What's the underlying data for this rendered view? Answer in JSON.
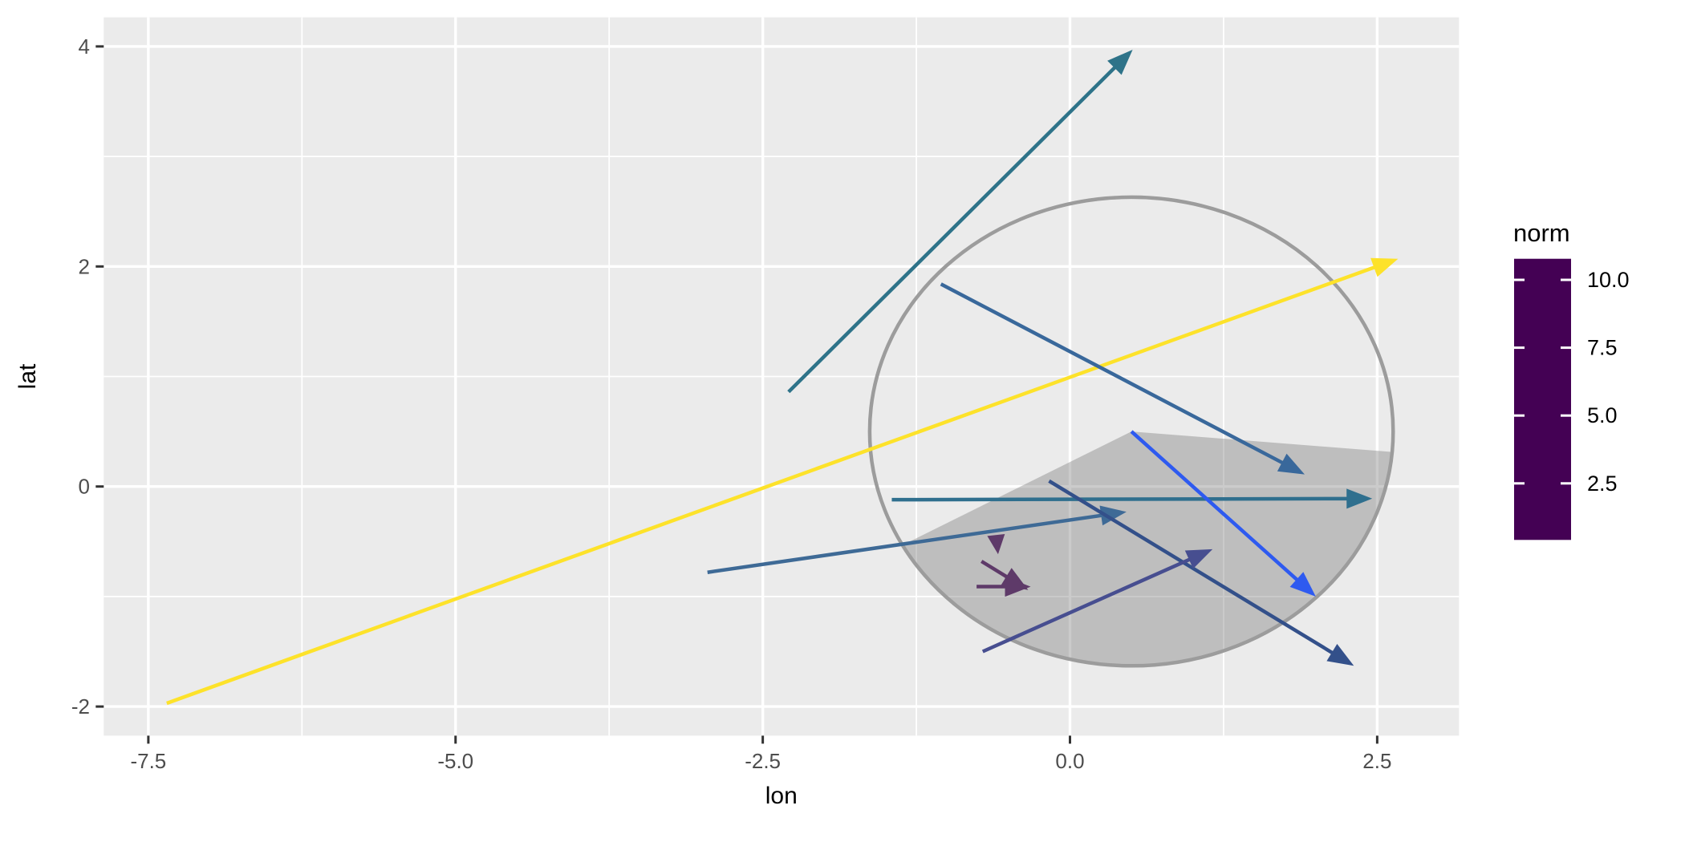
{
  "chart_data": {
    "type": "scatter",
    "subtype": "arrow_segments_vector_plot",
    "title": "",
    "xlabel": "lon",
    "ylabel": "lat",
    "xlim": [
      -7.86,
      3.17
    ],
    "ylim": [
      -2.27,
      4.27
    ],
    "grid": true,
    "x_ticks": {
      "values": [
        -7.5,
        -5.0,
        -2.5,
        0.0,
        2.5
      ],
      "labels": [
        "-7.5",
        "-5.0",
        "-2.5",
        "0.0",
        "2.5"
      ]
    },
    "x_minor": [
      -6.25,
      -3.75,
      -1.25,
      1.25
    ],
    "y_ticks": {
      "values": [
        -2,
        0,
        2,
        4
      ],
      "labels": [
        "-2",
        "0",
        "2",
        "4"
      ]
    },
    "y_minor": [
      -1,
      1,
      3
    ],
    "segments": [
      {
        "name": "yellow-long-arrow",
        "x": -7.35,
        "y": -1.97,
        "xend": 2.67,
        "yend": 2.07,
        "norm": 10.8,
        "color": "#FDE22A"
      },
      {
        "name": "teal-up-arrow",
        "x": -2.29,
        "y": 0.86,
        "xend": 0.51,
        "yend": 3.97,
        "norm": 4.2,
        "color": "#2E7389"
      },
      {
        "name": "horizontal-arrow",
        "x": -1.45,
        "y": -0.12,
        "xend": 2.46,
        "yend": -0.11,
        "norm": 3.9,
        "color": "#2F6F8E"
      },
      {
        "name": "low-left-arrow",
        "x": -2.95,
        "y": -0.78,
        "xend": 0.46,
        "yend": -0.23,
        "norm": 3.4,
        "color": "#3E6A96"
      },
      {
        "name": "steel-down-arrow",
        "x": -1.05,
        "y": 1.84,
        "xend": 1.91,
        "yend": 0.11,
        "norm": 3.4,
        "color": "#39689B"
      },
      {
        "name": "navy-down-arrow",
        "x": -0.17,
        "y": 0.05,
        "xend": 2.31,
        "yend": -1.63,
        "norm": 3.0,
        "color": "#33508A"
      },
      {
        "name": "slate-up-arrow",
        "x": -0.71,
        "y": -1.5,
        "xend": 1.16,
        "yend": -0.57,
        "norm": 2.1,
        "color": "#474E90"
      },
      {
        "name": "bright-blue-arrow",
        "x": 0.5,
        "y": 0.5,
        "xend": 2.0,
        "yend": -1.0,
        "norm": null,
        "color": "#2E5AF0"
      },
      {
        "name": "purple-tiny-arrow",
        "x": -0.6,
        "y": -0.46,
        "xend": -0.585,
        "yend": -0.615,
        "norm": 0.2,
        "color": "#5E3A69"
      },
      {
        "name": "purple-diag-arrow",
        "x": -0.72,
        "y": -0.68,
        "xend": -0.34,
        "yend": -0.94,
        "norm": 0.46,
        "color": "#5E3A69"
      },
      {
        "name": "purple-horiz-arrow",
        "x": -0.76,
        "y": -0.91,
        "xend": -0.32,
        "yend": -0.91,
        "norm": 0.44,
        "color": "#5E3A69"
      }
    ],
    "circle": {
      "cx": 0.5,
      "cy": 0.5,
      "r": 2.13,
      "stroke": "#9C9C9C"
    },
    "sector": {
      "cx": 0.5,
      "cy": 0.5,
      "r": 2.13,
      "start_deg": -5,
      "end_deg": -151,
      "fill": "rgba(105,105,105,0.35)"
    },
    "legend": {
      "title": "norm",
      "position": "right",
      "limits": [
        0.41,
        10.78
      ],
      "ticks": [
        {
          "value": 10.0,
          "label": "10.0"
        },
        {
          "value": 7.5,
          "label": "7.5"
        },
        {
          "value": 5.0,
          "label": "5.0"
        },
        {
          "value": 2.5,
          "label": "2.5"
        }
      ],
      "viridis_stops_bottom_to_top": [
        "#440154",
        "#482575",
        "#414487",
        "#355F8D",
        "#2A788E",
        "#21918C",
        "#22A884",
        "#44BF70",
        "#7AD151",
        "#BDDF26",
        "#FDE725"
      ]
    }
  },
  "style": {
    "plot_bg": "#FFFFFF",
    "panel_bg": "#EBEBEB",
    "grid_color": "#FFFFFF",
    "tick_label_color": "#4D4D4D",
    "tick_mark_color": "#333333",
    "axis_title_color": "#000000",
    "legend_tick_color": "#FFFFFF",
    "circle_stroke": "#9C9C9C",
    "sector_fill": "rgba(105,105,105,0.35)"
  }
}
